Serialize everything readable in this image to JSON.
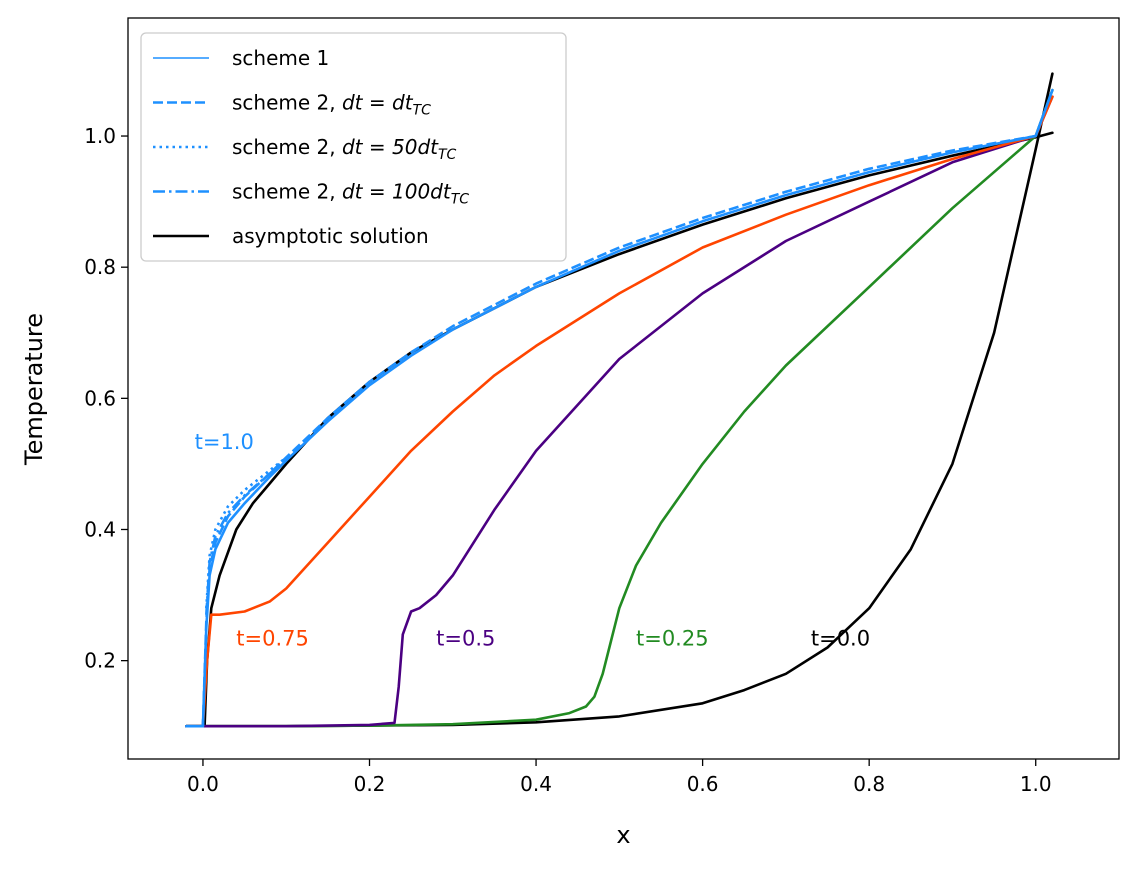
{
  "chart_data": {
    "type": "line",
    "xlabel": "x",
    "ylabel": "Temperature",
    "xlim": [
      -0.09,
      1.1
    ],
    "ylim": [
      0.05,
      1.18
    ],
    "x_ticks": [
      0.0,
      0.2,
      0.4,
      0.6,
      0.8,
      1.0
    ],
    "x_tick_labels": [
      "0.0",
      "0.2",
      "0.4",
      "0.6",
      "0.8",
      "1.0"
    ],
    "y_ticks": [
      0.2,
      0.4,
      0.6,
      0.8,
      1.0
    ],
    "y_tick_labels": [
      "0.2",
      "0.4",
      "0.6",
      "0.8",
      "1.0"
    ],
    "grid": false,
    "legend_position": "top-left",
    "legend": [
      {
        "label": "scheme 1",
        "base": "scheme 1",
        "math": "",
        "sub": "",
        "style": "solid",
        "color": "#1e90ff"
      },
      {
        "label": "scheme 2, dt = dt_TC",
        "base": "scheme 2, ",
        "math": "dt = dt",
        "sub": "TC",
        "style": "dashed",
        "color": "#1e90ff"
      },
      {
        "label": "scheme 2, dt = 50dt_TC",
        "base": "scheme 2, ",
        "math": "dt = 50dt",
        "sub": "TC",
        "style": "dotted",
        "color": "#1e90ff"
      },
      {
        "label": "scheme 2, dt = 100dt_TC",
        "base": "scheme 2, ",
        "math": "dt = 100dt",
        "sub": "TC",
        "style": "dashdot",
        "color": "#1e90ff"
      },
      {
        "label": "asymptotic solution",
        "base": "asymptotic solution",
        "math": "",
        "sub": "",
        "style": "solid",
        "color": "#000000"
      }
    ],
    "annotations": [
      {
        "text": "t=1.0",
        "x": -0.01,
        "y": 0.535,
        "color": "#1e90ff"
      },
      {
        "text": "t=0.75",
        "x": 0.04,
        "y": 0.235,
        "color": "#ff4500"
      },
      {
        "text": "t=0.5",
        "x": 0.28,
        "y": 0.235,
        "color": "#4b0082"
      },
      {
        "text": "t=0.25",
        "x": 0.52,
        "y": 0.235,
        "color": "#228b22"
      },
      {
        "text": "t=0.0",
        "x": 0.73,
        "y": 0.235,
        "color": "#000000"
      }
    ],
    "series": [
      {
        "name": "asymptotic solution",
        "time": "t=0.0",
        "color": "#000000",
        "width": 2.6,
        "style": "solid",
        "x": [
          -0.02,
          0.0,
          0.1,
          0.2,
          0.3,
          0.4,
          0.5,
          0.6,
          0.65,
          0.7,
          0.75,
          0.8,
          0.85,
          0.9,
          0.95,
          1.0,
          1.02
        ],
        "y": [
          0.1,
          0.1,
          0.1,
          0.101,
          0.102,
          0.106,
          0.115,
          0.135,
          0.155,
          0.18,
          0.22,
          0.28,
          0.37,
          0.5,
          0.7,
          0.98,
          1.095
        ]
      },
      {
        "name": "asymptotic solution",
        "time": "t=1.0",
        "color": "#000000",
        "width": 2.6,
        "style": "solid",
        "x": [
          -0.02,
          0.002,
          0.005,
          0.01,
          0.02,
          0.04,
          0.06,
          0.08,
          0.1,
          0.15,
          0.2,
          0.25,
          0.3,
          0.4,
          0.5,
          0.6,
          0.7,
          0.8,
          0.9,
          1.0,
          1.02
        ],
        "y": [
          0.1,
          0.1,
          0.2,
          0.28,
          0.33,
          0.4,
          0.44,
          0.47,
          0.5,
          0.57,
          0.625,
          0.67,
          0.705,
          0.77,
          0.82,
          0.865,
          0.905,
          0.94,
          0.97,
          0.998,
          1.005
        ]
      },
      {
        "name": "scheme 1",
        "time": "t=0.25",
        "color": "#228b22",
        "width": 2.6,
        "style": "solid",
        "x": [
          -0.02,
          0.0,
          0.1,
          0.2,
          0.3,
          0.4,
          0.44,
          0.46,
          0.47,
          0.48,
          0.49,
          0.5,
          0.52,
          0.55,
          0.6,
          0.65,
          0.7,
          0.8,
          0.9,
          1.0,
          1.02
        ],
        "y": [
          0.1,
          0.1,
          0.1,
          0.101,
          0.103,
          0.11,
          0.12,
          0.13,
          0.145,
          0.18,
          0.23,
          0.28,
          0.345,
          0.41,
          0.5,
          0.58,
          0.65,
          0.77,
          0.89,
          1.0,
          1.07
        ]
      },
      {
        "name": "scheme 1",
        "time": "t=0.5",
        "color": "#4b0082",
        "width": 2.6,
        "style": "solid",
        "x": [
          -0.02,
          0.0,
          0.1,
          0.2,
          0.23,
          0.235,
          0.24,
          0.25,
          0.26,
          0.28,
          0.3,
          0.35,
          0.4,
          0.5,
          0.6,
          0.7,
          0.8,
          0.9,
          1.0,
          1.02
        ],
        "y": [
          0.1,
          0.1,
          0.1,
          0.102,
          0.105,
          0.16,
          0.24,
          0.275,
          0.28,
          0.3,
          0.33,
          0.43,
          0.52,
          0.66,
          0.76,
          0.84,
          0.9,
          0.96,
          1.0,
          1.06
        ]
      },
      {
        "name": "scheme 1",
        "time": "t=0.75",
        "color": "#ff4500",
        "width": 2.6,
        "style": "solid",
        "x": [
          -0.02,
          -0.005,
          0.0,
          0.005,
          0.01,
          0.02,
          0.05,
          0.08,
          0.1,
          0.15,
          0.2,
          0.25,
          0.3,
          0.35,
          0.4,
          0.5,
          0.6,
          0.7,
          0.8,
          0.9,
          1.0,
          1.02
        ],
        "y": [
          0.1,
          0.1,
          0.1,
          0.2,
          0.27,
          0.27,
          0.275,
          0.29,
          0.31,
          0.38,
          0.45,
          0.52,
          0.58,
          0.635,
          0.68,
          0.76,
          0.83,
          0.88,
          0.925,
          0.965,
          1.0,
          1.06
        ]
      },
      {
        "name": "scheme 1",
        "time": "t=1.0",
        "color": "#1e90ff",
        "width": 2.6,
        "style": "solid",
        "x": [
          -0.02,
          -0.005,
          0.0,
          0.004,
          0.008,
          0.015,
          0.03,
          0.05,
          0.08,
          0.1,
          0.15,
          0.2,
          0.25,
          0.3,
          0.4,
          0.5,
          0.6,
          0.7,
          0.8,
          0.9,
          1.0,
          1.02
        ],
        "y": [
          0.1,
          0.1,
          0.1,
          0.25,
          0.33,
          0.37,
          0.41,
          0.44,
          0.48,
          0.505,
          0.565,
          0.62,
          0.665,
          0.705,
          0.77,
          0.825,
          0.87,
          0.91,
          0.945,
          0.975,
          1.0,
          1.07
        ]
      },
      {
        "name": "scheme 2, dt = dt_TC",
        "time": "t=1.0",
        "color": "#1e90ff",
        "width": 2.6,
        "style": "dashed",
        "x": [
          -0.02,
          -0.005,
          0.0,
          0.004,
          0.008,
          0.015,
          0.03,
          0.05,
          0.08,
          0.1,
          0.15,
          0.2,
          0.25,
          0.3,
          0.4,
          0.5,
          0.6,
          0.7,
          0.8,
          0.9,
          1.0,
          1.02
        ],
        "y": [
          0.1,
          0.1,
          0.1,
          0.26,
          0.34,
          0.38,
          0.42,
          0.45,
          0.485,
          0.51,
          0.57,
          0.625,
          0.67,
          0.71,
          0.775,
          0.83,
          0.875,
          0.915,
          0.95,
          0.978,
          1.0,
          1.07
        ]
      },
      {
        "name": "scheme 2, dt = 50dt_TC",
        "time": "t=1.0",
        "color": "#1e90ff",
        "width": 2.6,
        "style": "dotted",
        "x": [
          0.004,
          0.008,
          0.015,
          0.03,
          0.05,
          0.08,
          0.1
        ],
        "y": [
          0.28,
          0.36,
          0.4,
          0.435,
          0.46,
          0.49,
          0.51
        ]
      },
      {
        "name": "scheme 2, dt = 100dt_TC",
        "time": "t=1.0",
        "color": "#1e90ff",
        "width": 2.6,
        "style": "dashdot",
        "x": [
          0.004,
          0.008,
          0.015,
          0.03,
          0.05,
          0.08,
          0.1
        ],
        "y": [
          0.27,
          0.35,
          0.39,
          0.425,
          0.452,
          0.485,
          0.507
        ]
      }
    ]
  }
}
